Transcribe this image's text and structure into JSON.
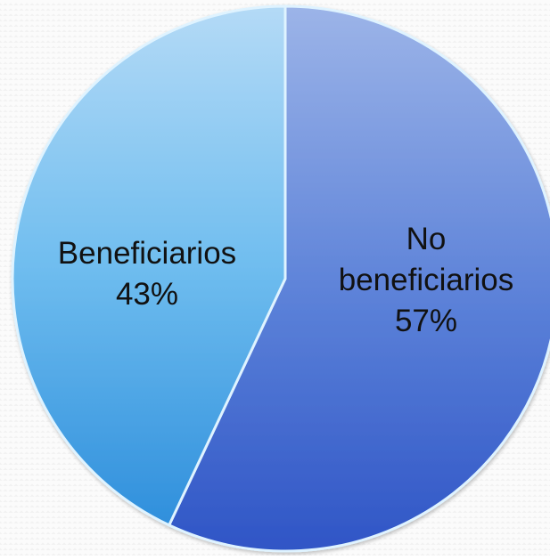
{
  "chart_data": {
    "type": "pie",
    "title": "",
    "slices": [
      {
        "label": "No beneficiarios",
        "label_lines": [
          "No",
          "beneficiarios"
        ],
        "value": 57,
        "display": "57%",
        "color": "#4d74d0"
      },
      {
        "label": "Beneficiarios",
        "label_lines": [
          "Beneficiarios"
        ],
        "value": 43,
        "display": "43%",
        "color": "#5fb3ea"
      }
    ],
    "start": "12 o'clock",
    "direction": "clockwise",
    "legend": "none"
  }
}
